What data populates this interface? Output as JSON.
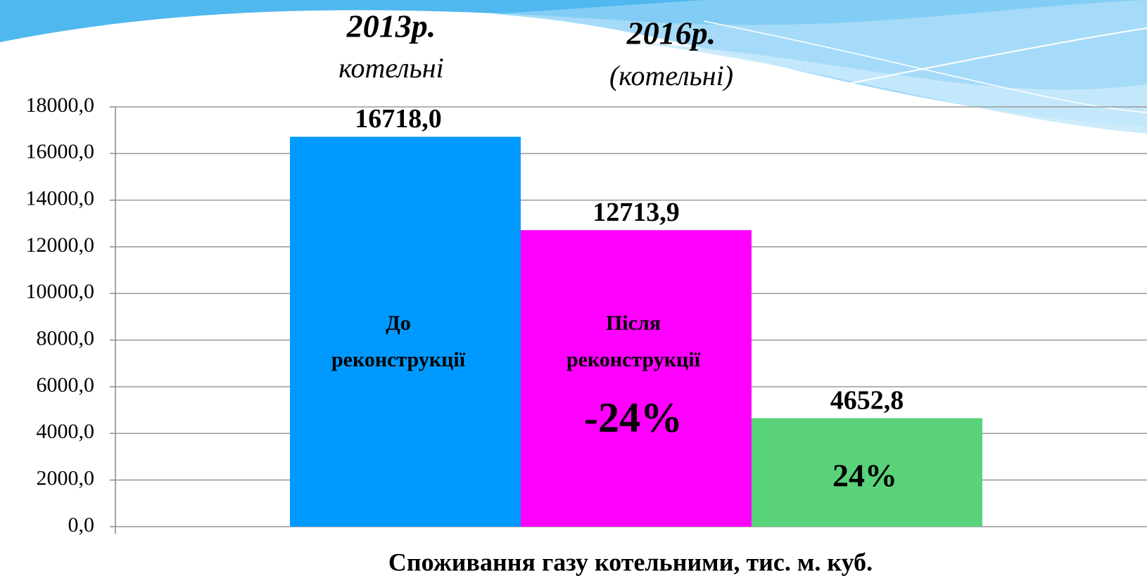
{
  "chart_data": {
    "type": "bar",
    "categories": [
      null,
      null,
      null
    ],
    "values": [
      16718.0,
      12713.9,
      4652.8
    ],
    "value_labels": [
      "16718,0",
      "12713,9",
      "4652,8"
    ],
    "colors": [
      "#0099ff",
      "#ff00ff",
      "#5ad27a"
    ],
    "xlabel": "Споживання газу котельними, тис. м. куб.",
    "ylim": [
      0,
      18000
    ],
    "yticks": [
      {
        "value": 0,
        "label": "0,0"
      },
      {
        "value": 2000,
        "label": "2000,0"
      },
      {
        "value": 4000,
        "label": "4000,0"
      },
      {
        "value": 6000,
        "label": "6000,0"
      },
      {
        "value": 8000,
        "label": "8000,0"
      },
      {
        "value": 10000,
        "label": "10000,0"
      },
      {
        "value": 12000,
        "label": "12000,0"
      },
      {
        "value": 14000,
        "label": "14000,0"
      },
      {
        "value": 16000,
        "label": "16000,0"
      },
      {
        "value": 18000,
        "label": "18000,0"
      }
    ],
    "grid": true,
    "annotations": [
      "2013р.",
      "котельні",
      "2016р.",
      "(котельні)",
      "До",
      "реконструкції",
      "Після",
      "реконструкції",
      "-24%",
      "24%"
    ]
  }
}
